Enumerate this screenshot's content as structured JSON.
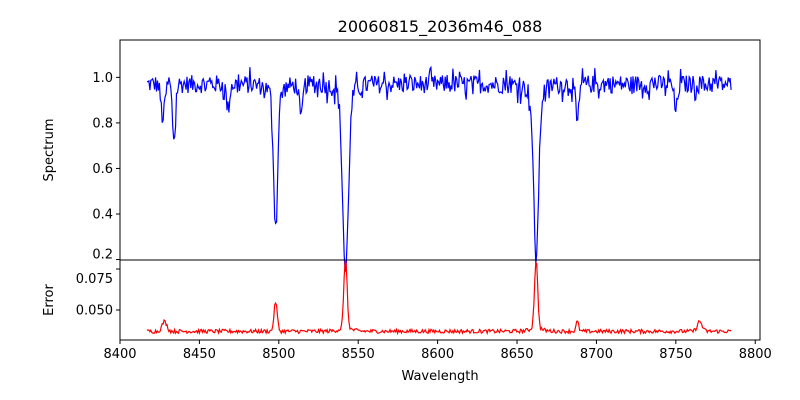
{
  "chart_data": [
    {
      "type": "line",
      "title": "20060815_2036m46_088",
      "xlabel": "",
      "ylabel": "Spectrum",
      "xlim": [
        8400,
        8803
      ],
      "ylim": [
        0.198,
        1.164
      ],
      "yticks": [
        "0.2",
        "0.4",
        "0.6",
        "0.8",
        "1.0"
      ],
      "ytick_values": [
        0.2,
        0.4,
        0.6,
        0.8,
        1.0
      ],
      "color": "#0000ff",
      "x_range": [
        8417,
        8785
      ],
      "continuum": 0.97,
      "noise": 0.04,
      "absorption_lines": [
        {
          "x": 8427,
          "min": 0.82,
          "width": 1.2
        },
        {
          "x": 8434,
          "min": 0.73,
          "width": 1.0
        },
        {
          "x": 8468,
          "min": 0.86,
          "width": 1.0
        },
        {
          "x": 8498,
          "min": 0.43,
          "width": 1.3
        },
        {
          "x": 8514,
          "min": 0.81,
          "width": 1.0
        },
        {
          "x": 8542,
          "min": 0.24,
          "width": 1.8
        },
        {
          "x": 8662,
          "min": 0.3,
          "width": 1.6
        },
        {
          "x": 8688,
          "min": 0.79,
          "width": 1.0
        },
        {
          "x": 8750,
          "min": 0.85,
          "width": 1.0
        }
      ]
    },
    {
      "type": "line",
      "title": "",
      "xlabel": "Wavelength",
      "ylabel": "Error",
      "xlim": [
        8400,
        8803
      ],
      "ylim": [
        0.0317,
        0.0805
      ],
      "xticks": [
        "8400",
        "8450",
        "8500",
        "8550",
        "8600",
        "8650",
        "8700",
        "8750",
        "8800"
      ],
      "xtick_values": [
        8400,
        8450,
        8500,
        8550,
        8600,
        8650,
        8700,
        8750,
        8800
      ],
      "yticks": [
        "0.050",
        "0.075"
      ],
      "ytick_values": [
        0.05,
        0.075
      ],
      "color": "#ff0000",
      "x_range": [
        8417,
        8785
      ],
      "baseline": 0.037,
      "noise": 0.0012,
      "peaks": [
        {
          "x": 8428,
          "max": 0.043,
          "width": 1.5
        },
        {
          "x": 8498,
          "max": 0.055,
          "width": 1.0
        },
        {
          "x": 8542,
          "max": 0.078,
          "width": 1.0
        },
        {
          "x": 8662,
          "max": 0.077,
          "width": 1.0
        },
        {
          "x": 8688,
          "max": 0.043,
          "width": 0.8
        },
        {
          "x": 8765,
          "max": 0.043,
          "width": 1.5
        }
      ]
    }
  ]
}
